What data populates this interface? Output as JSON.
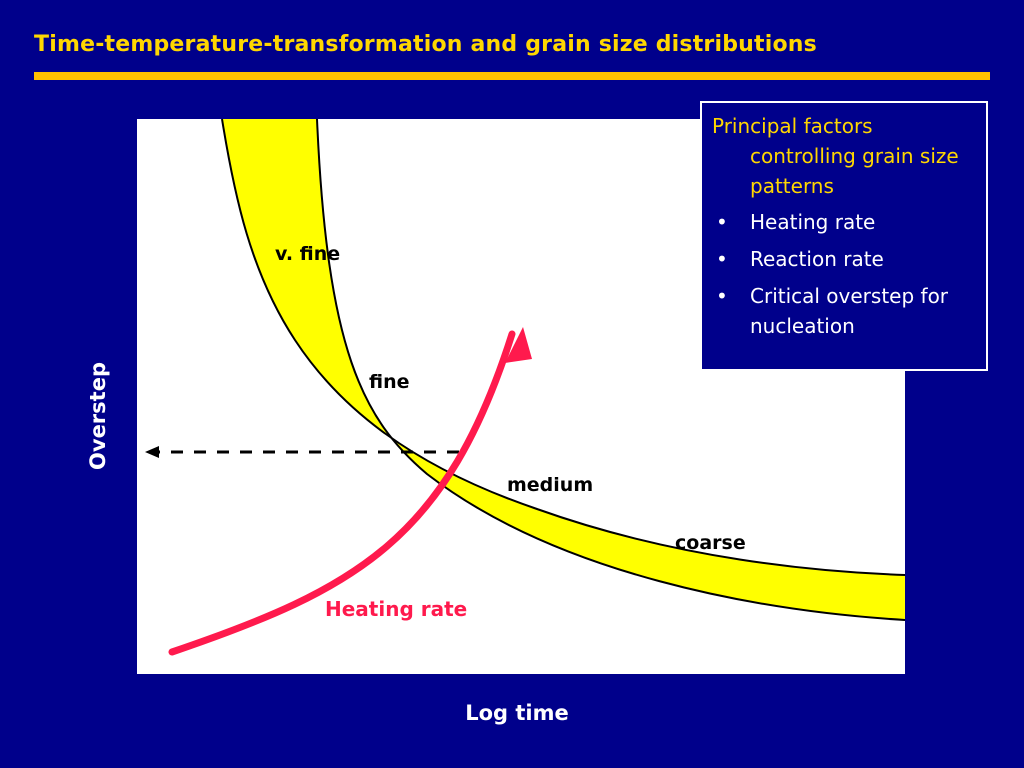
{
  "slide": {
    "title": "Time-temperature-transformation and grain size distributions"
  },
  "diagram": {
    "y_axis_label": "Overstep",
    "x_axis_label": "Log time",
    "band_labels": {
      "very_fine": "v. fine",
      "fine": "fine",
      "medium": "medium",
      "coarse": "coarse"
    },
    "arrow_label": "Heating rate",
    "colors": {
      "background": "#00008b",
      "band": "#ffff00",
      "arrow": "#ff1a4d",
      "title": "#ffd700",
      "rule": "#ffc000"
    }
  },
  "factors_box": {
    "heading": "Principal factors controlling grain size patterns",
    "items": [
      "Heating rate",
      "Reaction rate",
      "Critical overstep for nucleation"
    ]
  }
}
